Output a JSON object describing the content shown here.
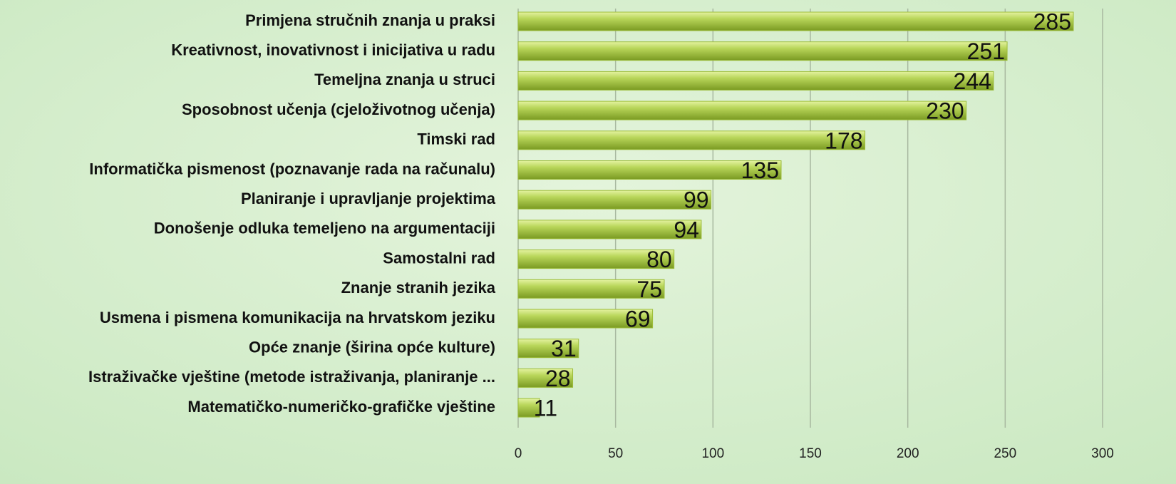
{
  "chart_data": {
    "type": "bar",
    "orientation": "horizontal",
    "categories": [
      "Primjena stručnih znanja u praksi",
      "Kreativnost, inovativnost i inicijativa u radu",
      "Temeljna znanja u struci",
      "Sposobnost učenja (cjeloživotnog učenja)",
      "Timski rad",
      "Informatička pismenost (poznavanje rada na računalu)",
      "Planiranje i upravljanje  projektima",
      "Donošenje odluka temeljeno na argumentaciji",
      "Samostalni rad",
      "Znanje stranih jezika",
      "Usmena i pismena komunikacija  na hrvatskom jeziku",
      "Opće znanje (širina opće kulture)",
      "Istraživačke vještine (metode istraživanja, planiranje ...",
      "Matematičko-numeričko-grafičke vještine"
    ],
    "values": [
      285,
      251,
      244,
      230,
      178,
      135,
      99,
      94,
      80,
      75,
      69,
      31,
      28,
      11
    ],
    "color": "#9dbd3a",
    "xlim": [
      0,
      300
    ],
    "xticks": [
      0,
      50,
      100,
      150,
      200,
      250,
      300
    ],
    "grid": true
  }
}
